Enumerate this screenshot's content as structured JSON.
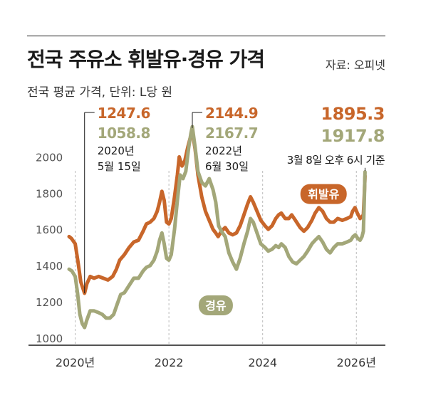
{
  "header": {
    "title": "전국 주유소 휘발유·경유 가격",
    "source": "자료: 오피넷",
    "subtitle": "전국 평균 가격, 단위: L당 원"
  },
  "colors": {
    "gasoline": "#c8662a",
    "diesel": "#a3a779",
    "axis": "#1a1a1a",
    "grid": "#bbbbbb"
  },
  "chart_data": {
    "type": "line",
    "title": "전국 주유소 휘발유·경유 가격",
    "subtitle": "전국 평균 가격, 단위: L당 원",
    "ylim": [
      960,
      2120
    ],
    "xlim": [
      2019.87,
      2026.3
    ],
    "yticks": [
      1000,
      1200,
      1400,
      1600,
      1800,
      2000
    ],
    "xticks": [
      {
        "x": 2020.0,
        "label": "2020년"
      },
      {
        "x": 2022.0,
        "label": "2022"
      },
      {
        "x": 2024.0,
        "label": "2024"
      },
      {
        "x": 2026.0,
        "label": "2026년"
      }
    ],
    "grid": "vertical dashed at year marks",
    "series": [
      {
        "name": "휘발유",
        "color": "#c8662a",
        "points": [
          [
            2019.87,
            1560
          ],
          [
            2019.92,
            1550
          ],
          [
            2020.0,
            1520
          ],
          [
            2020.06,
            1420
          ],
          [
            2020.12,
            1310
          ],
          [
            2020.2,
            1247
          ],
          [
            2020.25,
            1300
          ],
          [
            2020.32,
            1340
          ],
          [
            2020.4,
            1330
          ],
          [
            2020.5,
            1340
          ],
          [
            2020.6,
            1330
          ],
          [
            2020.7,
            1320
          ],
          [
            2020.8,
            1340
          ],
          [
            2020.88,
            1380
          ],
          [
            2020.95,
            1430
          ],
          [
            2021.05,
            1460
          ],
          [
            2021.15,
            1500
          ],
          [
            2021.25,
            1530
          ],
          [
            2021.35,
            1540
          ],
          [
            2021.45,
            1590
          ],
          [
            2021.52,
            1630
          ],
          [
            2021.6,
            1640
          ],
          [
            2021.68,
            1660
          ],
          [
            2021.75,
            1700
          ],
          [
            2021.8,
            1750
          ],
          [
            2021.85,
            1810
          ],
          [
            2021.9,
            1760
          ],
          [
            2021.95,
            1640
          ],
          [
            2022.0,
            1630
          ],
          [
            2022.05,
            1660
          ],
          [
            2022.12,
            1780
          ],
          [
            2022.18,
            1900
          ],
          [
            2022.22,
            2000
          ],
          [
            2022.28,
            1950
          ],
          [
            2022.34,
            1980
          ],
          [
            2022.4,
            2050
          ],
          [
            2022.45,
            2100
          ],
          [
            2022.5,
            2144
          ],
          [
            2022.56,
            2040
          ],
          [
            2022.62,
            1900
          ],
          [
            2022.7,
            1780
          ],
          [
            2022.78,
            1700
          ],
          [
            2022.86,
            1650
          ],
          [
            2022.94,
            1600
          ],
          [
            2023.0,
            1580
          ],
          [
            2023.05,
            1560
          ],
          [
            2023.12,
            1590
          ],
          [
            2023.2,
            1610
          ],
          [
            2023.28,
            1580
          ],
          [
            2023.36,
            1570
          ],
          [
            2023.44,
            1580
          ],
          [
            2023.52,
            1620
          ],
          [
            2023.6,
            1680
          ],
          [
            2023.68,
            1740
          ],
          [
            2023.74,
            1780
          ],
          [
            2023.8,
            1750
          ],
          [
            2023.88,
            1700
          ],
          [
            2023.96,
            1650
          ],
          [
            2024.05,
            1620
          ],
          [
            2024.12,
            1600
          ],
          [
            2024.2,
            1620
          ],
          [
            2024.28,
            1660
          ],
          [
            2024.34,
            1680
          ],
          [
            2024.4,
            1690
          ],
          [
            2024.48,
            1660
          ],
          [
            2024.56,
            1660
          ],
          [
            2024.62,
            1680
          ],
          [
            2024.7,
            1650
          ],
          [
            2024.8,
            1610
          ],
          [
            2024.88,
            1590
          ],
          [
            2024.96,
            1610
          ],
          [
            2025.05,
            1650
          ],
          [
            2025.12,
            1690
          ],
          [
            2025.2,
            1720
          ],
          [
            2025.28,
            1700
          ],
          [
            2025.36,
            1660
          ],
          [
            2025.44,
            1640
          ],
          [
            2025.52,
            1640
          ],
          [
            2025.6,
            1660
          ],
          [
            2025.7,
            1650
          ],
          [
            2025.8,
            1660
          ],
          [
            2025.88,
            1670
          ],
          [
            2025.92,
            1700
          ],
          [
            2025.97,
            1720
          ],
          [
            2026.02,
            1690
          ],
          [
            2026.08,
            1660
          ],
          [
            2026.12,
            1670
          ],
          [
            2026.15,
            1680
          ],
          [
            2026.17,
            1790
          ],
          [
            2026.185,
            1895
          ]
        ]
      },
      {
        "name": "경유",
        "color": "#a3a779",
        "points": [
          [
            2019.87,
            1380
          ],
          [
            2019.93,
            1370
          ],
          [
            2020.0,
            1340
          ],
          [
            2020.05,
            1250
          ],
          [
            2020.1,
            1130
          ],
          [
            2020.15,
            1080
          ],
          [
            2020.2,
            1058
          ],
          [
            2020.25,
            1100
          ],
          [
            2020.32,
            1150
          ],
          [
            2020.4,
            1150
          ],
          [
            2020.5,
            1140
          ],
          [
            2020.58,
            1130
          ],
          [
            2020.66,
            1110
          ],
          [
            2020.74,
            1110
          ],
          [
            2020.82,
            1130
          ],
          [
            2020.9,
            1190
          ],
          [
            2020.97,
            1240
          ],
          [
            2021.05,
            1250
          ],
          [
            2021.15,
            1290
          ],
          [
            2021.25,
            1330
          ],
          [
            2021.35,
            1330
          ],
          [
            2021.45,
            1370
          ],
          [
            2021.52,
            1390
          ],
          [
            2021.6,
            1400
          ],
          [
            2021.68,
            1430
          ],
          [
            2021.75,
            1480
          ],
          [
            2021.8,
            1540
          ],
          [
            2021.85,
            1580
          ],
          [
            2021.9,
            1520
          ],
          [
            2021.95,
            1440
          ],
          [
            2022.0,
            1430
          ],
          [
            2022.05,
            1460
          ],
          [
            2022.12,
            1600
          ],
          [
            2022.18,
            1760
          ],
          [
            2022.24,
            1900
          ],
          [
            2022.3,
            1880
          ],
          [
            2022.36,
            1920
          ],
          [
            2022.42,
            2050
          ],
          [
            2022.47,
            2130
          ],
          [
            2022.5,
            2167
          ],
          [
            2022.56,
            2050
          ],
          [
            2022.62,
            1920
          ],
          [
            2022.7,
            1860
          ],
          [
            2022.78,
            1840
          ],
          [
            2022.86,
            1880
          ],
          [
            2022.94,
            1820
          ],
          [
            2023.0,
            1750
          ],
          [
            2023.06,
            1620
          ],
          [
            2023.12,
            1590
          ],
          [
            2023.2,
            1560
          ],
          [
            2023.28,
            1470
          ],
          [
            2023.36,
            1420
          ],
          [
            2023.44,
            1380
          ],
          [
            2023.52,
            1440
          ],
          [
            2023.6,
            1520
          ],
          [
            2023.68,
            1590
          ],
          [
            2023.74,
            1660
          ],
          [
            2023.8,
            1640
          ],
          [
            2023.88,
            1580
          ],
          [
            2023.96,
            1520
          ],
          [
            2024.05,
            1500
          ],
          [
            2024.12,
            1480
          ],
          [
            2024.2,
            1490
          ],
          [
            2024.28,
            1510
          ],
          [
            2024.34,
            1500
          ],
          [
            2024.4,
            1520
          ],
          [
            2024.48,
            1500
          ],
          [
            2024.56,
            1450
          ],
          [
            2024.64,
            1420
          ],
          [
            2024.72,
            1410
          ],
          [
            2024.8,
            1430
          ],
          [
            2024.88,
            1450
          ],
          [
            2024.96,
            1480
          ],
          [
            2025.05,
            1520
          ],
          [
            2025.12,
            1540
          ],
          [
            2025.2,
            1560
          ],
          [
            2025.28,
            1530
          ],
          [
            2025.36,
            1490
          ],
          [
            2025.44,
            1470
          ],
          [
            2025.52,
            1500
          ],
          [
            2025.6,
            1520
          ],
          [
            2025.7,
            1520
          ],
          [
            2025.8,
            1530
          ],
          [
            2025.88,
            1540
          ],
          [
            2025.93,
            1560
          ],
          [
            2025.98,
            1570
          ],
          [
            2026.03,
            1550
          ],
          [
            2026.08,
            1540
          ],
          [
            2026.12,
            1560
          ],
          [
            2026.15,
            1590
          ],
          [
            2026.17,
            1760
          ],
          [
            2026.185,
            1917
          ]
        ]
      }
    ],
    "series_labels": [
      {
        "series": "휘발유",
        "text": "휘발유",
        "x": 2025.3,
        "y": 1795
      },
      {
        "series": "경유",
        "text": "경유",
        "x": 2023.0,
        "y": 1180
      }
    ],
    "annotations": [
      {
        "x": 2020.2,
        "gasoline": "1247.6",
        "diesel": "1058.8",
        "lines": [
          "2020년",
          "5월 15일"
        ],
        "line_bottom_y": 1247
      },
      {
        "x": 2022.5,
        "gasoline": "2144.9",
        "diesel": "2167.7",
        "lines": [
          "2022년",
          "6월 30일"
        ],
        "line_bottom_y": 2160
      },
      {
        "x": 2026.185,
        "gasoline": "1895.3",
        "diesel": "1917.8",
        "lines": [
          "3월 8일 오후 6시 기준"
        ],
        "line_bottom_y": 1940
      }
    ]
  }
}
